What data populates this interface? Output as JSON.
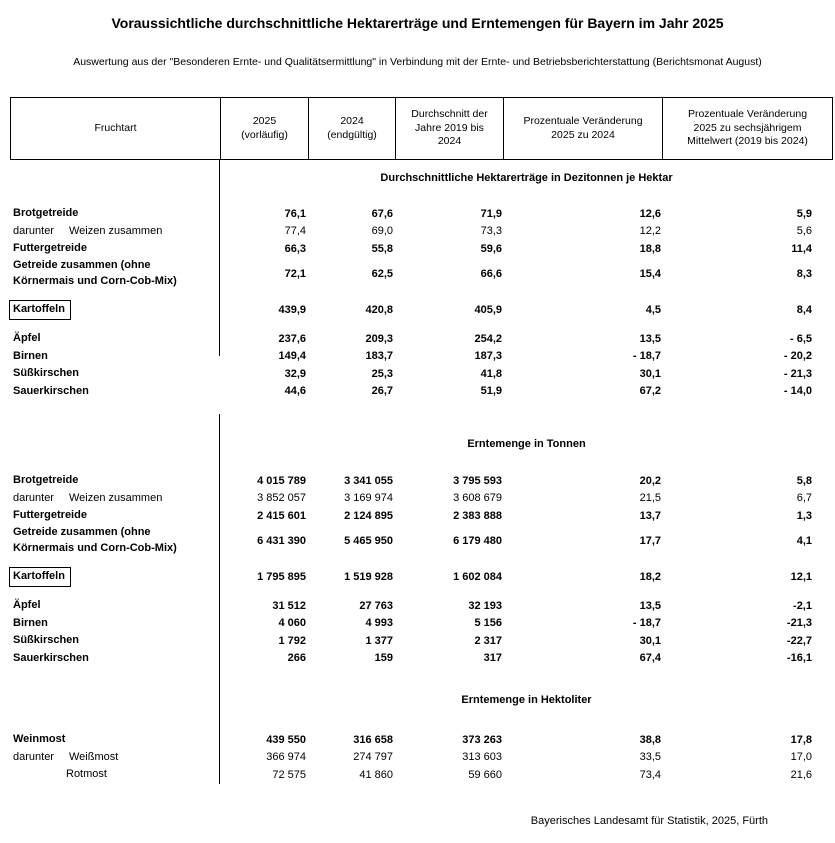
{
  "title": "Voraussichtliche durchschnittliche Hektarerträge und Erntemengen für Bayern im Jahr 2025",
  "subtitle": "Auswertung aus der \"Besonderen Ernte- und Qualitätsermittlung\" in Verbindung mit der Ernte- und Betriebsberichterstattung (Berichtsmonat August)",
  "source_note": "Bayerisches Landesamt für Statistik, 2025, Fürth",
  "table": {
    "column_headers": {
      "fruchtart": "Fruchtart",
      "y2025": "2025\n(vorläufig)",
      "y2024": "2024\n(endgültig)",
      "avg_2019_2024": "Durchschnitt der\nJahre 2019 bis\n2024",
      "change_2025_2024": "Prozentuale Veränderung\n2025 zu 2024",
      "change_2025_mean": "Prozentuale Veränderung\n2025 zu sechsjährigem\nMittelwert (2019 bis 2024)"
    },
    "sections": [
      {
        "header": "Durchschnittliche Hektarerträge in Dezitonnen je Hektar",
        "rows": [
          {
            "label": "Brotgetreide",
            "bold": true,
            "values": [
              "76,1",
              "67,6",
              "71,9",
              "12,6",
              "5,9"
            ]
          },
          {
            "prefix": "darunter",
            "label": "Weizen zusammen",
            "bold": false,
            "values": [
              "77,4",
              "69,0",
              "73,3",
              "12,2",
              "5,6"
            ]
          },
          {
            "label": "Futtergetreide",
            "bold": true,
            "values": [
              "66,3",
              "55,8",
              "59,6",
              "18,8",
              "11,4"
            ]
          },
          {
            "label": "Getreide zusammen (ohne\nKörnermais und Corn-Cob-Mix)",
            "bold": true,
            "values": [
              "72,1",
              "62,5",
              "66,6",
              "15,4",
              "8,3"
            ]
          },
          {
            "label": "Kartoffeln",
            "bold": true,
            "boxed": true,
            "gap_before": true,
            "values": [
              "439,9",
              "420,8",
              "405,9",
              "4,5",
              "8,4"
            ]
          },
          {
            "label": "Äpfel",
            "bold": true,
            "gap_before": true,
            "values": [
              "237,6",
              "209,3",
              "254,2",
              "13,5",
              "- 6,5"
            ]
          },
          {
            "label": "Birnen",
            "bold": true,
            "values": [
              "149,4",
              "183,7",
              "187,3",
              "- 18,7",
              "- 20,2"
            ]
          },
          {
            "label": "Süßkirschen",
            "bold": true,
            "values": [
              "32,9",
              "25,3",
              "41,8",
              "30,1",
              "- 21,3"
            ]
          },
          {
            "label": "Sauerkirschen",
            "bold": true,
            "values": [
              "44,6",
              "26,7",
              "51,9",
              "67,2",
              "- 14,0"
            ]
          }
        ]
      },
      {
        "header": "Erntemenge in Tonnen",
        "rows": [
          {
            "label": "Brotgetreide",
            "bold": true,
            "values": [
              "4 015 789",
              "3 341 055",
              "3 795 593",
              "20,2",
              "5,8"
            ]
          },
          {
            "prefix": "darunter",
            "label": "Weizen zusammen",
            "bold": false,
            "values": [
              "3 852 057",
              "3 169 974",
              "3 608 679",
              "21,5",
              "6,7"
            ]
          },
          {
            "label": "Futtergetreide",
            "bold": true,
            "values": [
              "2 415 601",
              "2 124 895",
              "2 383 888",
              "13,7",
              "1,3"
            ]
          },
          {
            "label": "Getreide zusammen (ohne\nKörnermais und Corn-Cob-Mix)",
            "bold": true,
            "values": [
              "6 431 390",
              "5 465 950",
              "6 179 480",
              "17,7",
              "4,1"
            ]
          },
          {
            "label": "Kartoffeln",
            "bold": true,
            "boxed": true,
            "gap_before": true,
            "values": [
              "1 795 895",
              "1 519 928",
              "1 602 084",
              "18,2",
              "12,1"
            ]
          },
          {
            "label": "Äpfel",
            "bold": true,
            "gap_before": true,
            "values": [
              "31 512",
              "27 763",
              "32 193",
              "13,5",
              "-2,1"
            ]
          },
          {
            "label": "Birnen",
            "bold": true,
            "values": [
              "4 060",
              "4 993",
              "5 156",
              "- 18,7",
              "-21,3"
            ]
          },
          {
            "label": "Süßkirschen",
            "bold": true,
            "values": [
              "1 792",
              "1 377",
              "2 317",
              "30,1",
              "-22,7"
            ]
          },
          {
            "label": "Sauerkirschen",
            "bold": true,
            "values": [
              "266",
              "159",
              "317",
              "67,4",
              "-16,1"
            ]
          }
        ]
      },
      {
        "header": "Erntemenge in Hektoliter",
        "rows": [
          {
            "label": "Weinmost",
            "bold": true,
            "values": [
              "439 550",
              "316 658",
              "373 263",
              "38,8",
              "17,8"
            ]
          },
          {
            "prefix": "darunter",
            "label": "Weißmost",
            "bold": false,
            "values": [
              "366 974",
              "274 797",
              "313 603",
              "33,5",
              "17,0"
            ]
          },
          {
            "label": "Rotmost",
            "bold": false,
            "indent": true,
            "values": [
              "72 575",
              "41 860",
              "59 660",
              "73,4",
              "21,6"
            ]
          }
        ]
      }
    ]
  }
}
